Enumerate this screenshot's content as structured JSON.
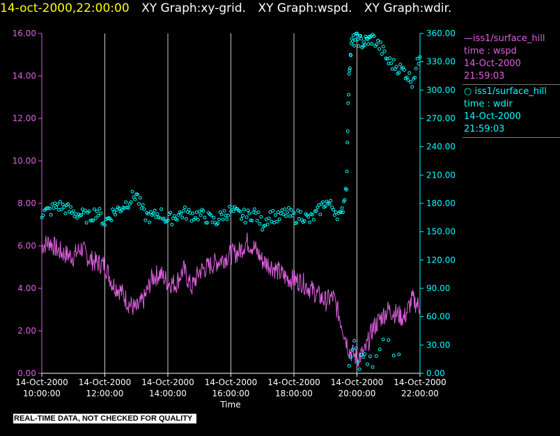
{
  "header": {
    "timestamp": "14-oct-2000,22:00:00",
    "graphs": [
      "XY Graph:xy-grid.",
      "XY Graph:wspd.",
      "XY Graph:wdir."
    ]
  },
  "footer": {
    "qc_notice": "REAL-TIME DATA, NOT CHECKED FOR QUALITY"
  },
  "colors": {
    "wspd": "#e060e0",
    "wdir": "#00ffff",
    "grid": "#c8c8c8",
    "timestamp": "#ffff00"
  },
  "chart_data": {
    "type": "line",
    "xlabel": "Time",
    "x_ticks": [
      "14-Oct-2000 10:00:00",
      "14-Oct-2000 12:00:00",
      "14-Oct-2000 14:00:00",
      "14-Oct-2000 16:00:00",
      "14-Oct-2000 18:00:00",
      "14-Oct-2000 20:00:00",
      "14-Oct-2000 22:00:00"
    ],
    "xlim": [
      "2000-10-14T10:00:00",
      "2000-10-14T22:00:00"
    ],
    "grid": "vertical",
    "y_left": {
      "range": [
        0,
        16
      ],
      "ticks": [
        "0.00",
        "2.00",
        "4.00",
        "6.00",
        "8.00",
        "10.00",
        "12.00",
        "14.00",
        "16.00"
      ],
      "color": "#e060e0"
    },
    "y_right": {
      "range": [
        0,
        360
      ],
      "ticks": [
        "0.00",
        "30.00",
        "60.00",
        "90.00",
        "120.00",
        "150.00",
        "180.00",
        "210.00",
        "240.00",
        "270.00",
        "300.00",
        "330.00",
        "360.00"
      ],
      "color": "#00ffff"
    },
    "legend": {
      "placement": "right",
      "entries": [
        {
          "line1": "—iss1/surface_hill",
          "line2": "time : wspd",
          "line3": "14-Oct-2000",
          "line4": "21:59:03"
        },
        {
          "line1": "○ iss1/surface_hill",
          "line2": "time : wdir",
          "line3": "14-Oct-2000",
          "line4": "21:59:03"
        }
      ]
    },
    "series": [
      {
        "key": "wspd",
        "axis": "left",
        "style": "line",
        "x": [
          "10:00",
          "10:15",
          "10:30",
          "10:45",
          "11:00",
          "11:15",
          "11:30",
          "11:45",
          "12:00",
          "12:15",
          "12:30",
          "12:45",
          "13:00",
          "13:15",
          "13:30",
          "13:45",
          "14:00",
          "14:15",
          "14:30",
          "14:45",
          "15:00",
          "15:15",
          "15:30",
          "15:45",
          "16:00",
          "16:15",
          "16:30",
          "16:45",
          "17:00",
          "17:15",
          "17:30",
          "17:45",
          "18:00",
          "18:15",
          "18:30",
          "18:45",
          "19:00",
          "19:15",
          "19:30",
          "19:45",
          "20:00",
          "20:15",
          "20:30",
          "20:45",
          "21:00",
          "21:15",
          "21:30",
          "21:45",
          "22:00"
        ],
        "values": [
          6.0,
          6.2,
          5.8,
          5.6,
          5.5,
          5.9,
          5.4,
          5.2,
          5.1,
          4.2,
          3.9,
          3.3,
          3.0,
          3.5,
          4.5,
          4.7,
          4.3,
          4.2,
          4.9,
          4.0,
          4.8,
          5.0,
          5.2,
          5.4,
          5.6,
          5.7,
          6.2,
          5.9,
          5.3,
          5.1,
          4.8,
          4.5,
          4.4,
          4.3,
          4.0,
          3.7,
          3.4,
          3.6,
          2.4,
          1.1,
          0.7,
          1.0,
          2.1,
          2.6,
          3.0,
          2.8,
          2.6,
          3.5,
          3.1
        ]
      },
      {
        "key": "wdir",
        "axis": "right",
        "style": "scatter",
        "x": [
          "10:00",
          "10:15",
          "10:30",
          "10:45",
          "11:00",
          "11:15",
          "11:30",
          "11:45",
          "12:00",
          "12:15",
          "12:30",
          "12:45",
          "13:00",
          "13:15",
          "13:30",
          "13:45",
          "14:00",
          "14:15",
          "14:30",
          "14:45",
          "15:00",
          "15:15",
          "15:30",
          "15:45",
          "16:00",
          "16:15",
          "16:30",
          "16:45",
          "17:00",
          "17:15",
          "17:30",
          "17:45",
          "18:00",
          "18:15",
          "18:30",
          "18:45",
          "19:00",
          "19:15",
          "19:30",
          "19:40",
          "19:45",
          "19:50",
          "20:00",
          "20:10",
          "20:20",
          "20:30",
          "20:45",
          "21:00",
          "21:15",
          "21:30",
          "21:45",
          "22:00"
        ],
        "values": [
          170,
          172,
          178,
          175,
          170,
          168,
          165,
          172,
          160,
          170,
          175,
          182,
          190,
          168,
          165,
          170,
          162,
          167,
          170,
          168,
          168,
          165,
          160,
          168,
          172,
          168,
          166,
          170,
          158,
          168,
          164,
          170,
          165,
          168,
          162,
          170,
          182,
          175,
          165,
          200,
          320,
          350,
          355,
          350,
          352,
          355,
          345,
          330,
          325,
          320,
          310,
          335
        ]
      },
      {
        "key": "wdir_low",
        "axis": "right",
        "style": "scatter",
        "x": [
          "19:45",
          "19:55",
          "20:05",
          "20:15",
          "20:30",
          "20:50",
          "21:20"
        ],
        "values": [
          15,
          40,
          10,
          20,
          5,
          30,
          20
        ]
      }
    ]
  }
}
